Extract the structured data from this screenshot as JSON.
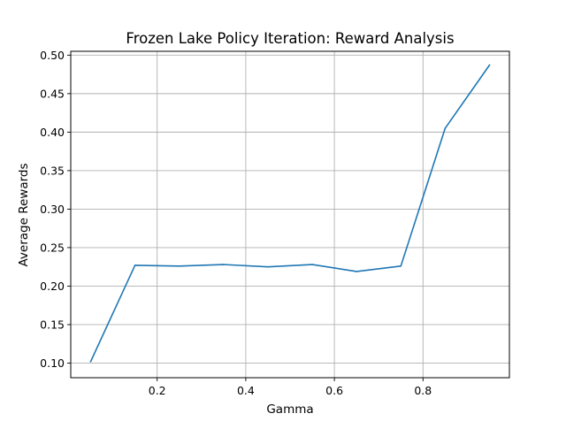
{
  "chart_data": {
    "type": "line",
    "title": "Frozen Lake Policy Iteration: Reward Analysis",
    "xlabel": "Gamma",
    "ylabel": "Average Rewards",
    "xlim": [
      0.005,
      0.995
    ],
    "ylim": [
      0.081,
      0.505
    ],
    "x_ticks": [
      0.2,
      0.4,
      0.6,
      0.8
    ],
    "x_tick_labels": [
      "0.2",
      "0.4",
      "0.6",
      "0.8"
    ],
    "y_ticks": [
      0.1,
      0.15,
      0.2,
      0.25,
      0.3,
      0.35,
      0.4,
      0.45,
      0.5
    ],
    "y_tick_labels": [
      "0.10",
      "0.15",
      "0.20",
      "0.25",
      "0.30",
      "0.35",
      "0.40",
      "0.45",
      "0.50"
    ],
    "grid": true,
    "x": [
      0.05,
      0.15,
      0.25,
      0.35,
      0.45,
      0.55,
      0.65,
      0.75,
      0.85,
      0.95
    ],
    "series": [
      {
        "values": [
          0.102,
          0.227,
          0.226,
          0.228,
          0.225,
          0.228,
          0.219,
          0.226,
          0.405,
          0.487
        ],
        "color": "#1f77b4"
      }
    ]
  }
}
